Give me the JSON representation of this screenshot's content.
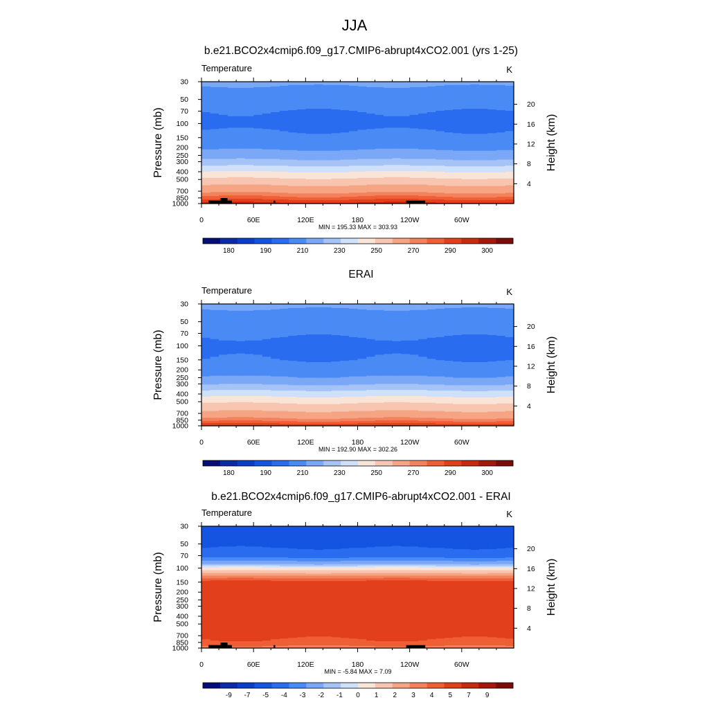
{
  "main_title": "JJA",
  "colors": {
    "temperature_palette": [
      "#050e76",
      "#0a2aa6",
      "#0b3ec8",
      "#1454e0",
      "#2a6cf0",
      "#4a8af5",
      "#7aa8f7",
      "#a5c3f7",
      "#cfe0fa",
      "#f9e4d8",
      "#f8c6b0",
      "#f6a584",
      "#f3825c",
      "#ef5f36",
      "#e2401c",
      "#c72b0f",
      "#a31a0c",
      "#7c0c08"
    ],
    "difference_palette": [
      "#050e76",
      "#0a2aa6",
      "#0b3ec8",
      "#1454e0",
      "#2a6cf0",
      "#4a8af5",
      "#7aa8f7",
      "#a5c3f7",
      "#cfe0fa",
      "#f9e4d8",
      "#f8c6b0",
      "#f6a584",
      "#f3825c",
      "#ef5f36",
      "#e2401c",
      "#c72b0f",
      "#a31a0c",
      "#7c0c08"
    ],
    "topography": "#000000"
  },
  "chart_data": [
    {
      "type": "heatmap",
      "title": "b.e21.BCO2x4cmip6.f09_g17.CMIP6-abrupt4xCO2.001 (yrs 1-25)",
      "left_string": "Temperature",
      "right_string": "K",
      "ylabel": "Pressure (mb)",
      "ylabel_right": "Height (km)",
      "x_ticks": [
        "0",
        "60E",
        "120E",
        "180",
        "120W",
        "60W"
      ],
      "x_tick_values": [
        0,
        60,
        120,
        180,
        240,
        300
      ],
      "xlim": [
        0,
        360
      ],
      "y_ticks": [
        "30",
        "50",
        "70",
        "100",
        "150",
        "200",
        "250",
        "300",
        "400",
        "500",
        "700",
        "850",
        "1000"
      ],
      "y_tick_values": [
        30,
        50,
        70,
        100,
        150,
        200,
        250,
        300,
        400,
        500,
        700,
        850,
        1000
      ],
      "ylim": [
        30,
        1000
      ],
      "y_scale": "log",
      "height_ticks": [
        "4",
        "8",
        "12",
        "16",
        "20"
      ],
      "height_tick_values": [
        4,
        8,
        12,
        16,
        20
      ],
      "stats": "MIN = 195.33  MAX = 303.93",
      "min": 195.33,
      "max": 303.93,
      "colorbar_labels": [
        "180",
        "190",
        "210",
        "230",
        "250",
        "270",
        "290",
        "300"
      ],
      "levels": [
        175,
        180,
        185,
        190,
        200,
        210,
        220,
        230,
        240,
        250,
        260,
        270,
        280,
        285,
        290,
        295,
        300,
        305
      ],
      "palette": "temperature_palette",
      "profile": {
        "p": [
          30,
          50,
          70,
          100,
          150,
          200,
          250,
          300,
          400,
          500,
          700,
          850,
          1000
        ],
        "v": [
          222,
          214,
          210,
          208,
          212,
          218,
          225,
          233,
          250,
          262,
          278,
          287,
          297
        ]
      },
      "show_topography": true
    },
    {
      "type": "heatmap",
      "title": "ERAI",
      "left_string": "Temperature",
      "right_string": "K",
      "ylabel": "Pressure (mb)",
      "ylabel_right": "Height (km)",
      "x_ticks": [
        "0",
        "60E",
        "120E",
        "180",
        "120W",
        "60W"
      ],
      "x_tick_values": [
        0,
        60,
        120,
        180,
        240,
        300
      ],
      "xlim": [
        0,
        360
      ],
      "y_ticks": [
        "30",
        "50",
        "70",
        "100",
        "150",
        "200",
        "250",
        "300",
        "400",
        "500",
        "700",
        "850",
        "1000"
      ],
      "y_tick_values": [
        30,
        50,
        70,
        100,
        150,
        200,
        250,
        300,
        400,
        500,
        700,
        850,
        1000
      ],
      "ylim": [
        30,
        1000
      ],
      "y_scale": "log",
      "height_ticks": [
        "4",
        "8",
        "12",
        "16",
        "20"
      ],
      "height_tick_values": [
        4,
        8,
        12,
        16,
        20
      ],
      "stats": "MIN = 192.90  MAX = 302.26",
      "min": 192.9,
      "max": 302.26,
      "colorbar_labels": [
        "180",
        "190",
        "210",
        "230",
        "250",
        "270",
        "290",
        "300"
      ],
      "levels": [
        175,
        180,
        185,
        190,
        200,
        210,
        220,
        230,
        240,
        250,
        260,
        270,
        280,
        285,
        290,
        295,
        300,
        305
      ],
      "palette": "temperature_palette",
      "profile": {
        "p": [
          30,
          50,
          70,
          100,
          150,
          200,
          250,
          300,
          400,
          500,
          700,
          850,
          1000
        ],
        "v": [
          222,
          215,
          211,
          208,
          210,
          214,
          221,
          229,
          246,
          258,
          273,
          283,
          295
        ]
      },
      "show_topography": false
    },
    {
      "type": "heatmap",
      "title": "b.e21.BCO2x4cmip6.f09_g17.CMIP6-abrupt4xCO2.001 - ERAI",
      "left_string": "Temperature",
      "right_string": "K",
      "ylabel": "Pressure (mb)",
      "ylabel_right": "Height (km)",
      "x_ticks": [
        "0",
        "60E",
        "120E",
        "180",
        "120W",
        "60W"
      ],
      "x_tick_values": [
        0,
        60,
        120,
        180,
        240,
        300
      ],
      "xlim": [
        0,
        360
      ],
      "y_ticks": [
        "30",
        "50",
        "70",
        "100",
        "150",
        "200",
        "250",
        "300",
        "400",
        "500",
        "700",
        "850",
        "1000"
      ],
      "y_tick_values": [
        30,
        50,
        70,
        100,
        150,
        200,
        250,
        300,
        400,
        500,
        700,
        850,
        1000
      ],
      "ylim": [
        30,
        1000
      ],
      "y_scale": "log",
      "height_ticks": [
        "4",
        "8",
        "12",
        "16",
        "20"
      ],
      "height_tick_values": [
        4,
        8,
        12,
        16,
        20
      ],
      "stats": "MIN =  -5.84  MAX =   7.09",
      "min": -5.84,
      "max": 7.09,
      "colorbar_labels": [
        "-9",
        "-7",
        "-5",
        "-4",
        "-3",
        "-2",
        "-1",
        "0",
        "1",
        "2",
        "3",
        "4",
        "5",
        "7",
        "9"
      ],
      "levels": [
        -11,
        -9,
        -7,
        -5,
        -4,
        -3,
        -2,
        -1,
        -0.5,
        0,
        1,
        2,
        3,
        4,
        5,
        7,
        9,
        11
      ],
      "palette": "difference_palette",
      "profile": {
        "p": [
          30,
          50,
          70,
          100,
          120,
          150,
          200,
          300,
          400,
          500,
          700,
          850,
          1000
        ],
        "v": [
          -4.8,
          -4.2,
          -3.6,
          0.2,
          2.5,
          5.5,
          6.0,
          6.0,
          6.0,
          5.8,
          5.2,
          4.8,
          3.5
        ]
      },
      "show_topography": true
    }
  ]
}
